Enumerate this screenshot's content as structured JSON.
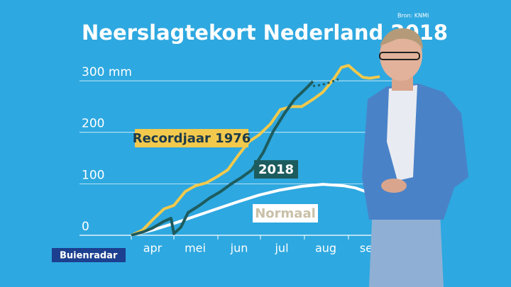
{
  "source": "Bron: KNMI",
  "brand": "Buienradar",
  "chart_data": {
    "type": "line",
    "title": "Neerslagtekort Nederland 2018",
    "xlim": [
      0,
      185
    ],
    "ylim": [
      0,
      340
    ],
    "xticks": [
      {
        "value": 15,
        "label": "apr"
      },
      {
        "value": 45,
        "label": "mei"
      },
      {
        "value": 76,
        "label": "jun"
      },
      {
        "value": 106,
        "label": "jul"
      },
      {
        "value": 137,
        "label": "aug"
      },
      {
        "value": 168,
        "label": "sep"
      }
    ],
    "yticks": [
      0,
      100,
      200,
      {
        "value": 300,
        "label": "300 mm"
      }
    ],
    "grid": true,
    "series": [
      {
        "name": "Recordjaar 1976",
        "color": "#f2c94c",
        "x": [
          0,
          8,
          15,
          23,
          30,
          38,
          45,
          53,
          60,
          68,
          75,
          83,
          90,
          98,
          105,
          113,
          120,
          128,
          135,
          143,
          148,
          153,
          158,
          163,
          168,
          175
        ],
        "values": [
          0,
          10,
          30,
          51,
          58,
          85,
          96,
          102,
          113,
          127,
          154,
          182,
          195,
          216,
          244,
          250,
          250,
          264,
          278,
          305,
          326,
          330,
          318,
          307,
          305,
          308
        ]
      },
      {
        "name": "2018",
        "color": "#1d5c5e",
        "x": [
          0,
          8,
          15,
          23,
          28,
          30,
          35,
          40,
          48,
          55,
          63,
          70,
          78,
          85,
          93,
          100,
          108,
          115,
          123,
          128
        ],
        "values": [
          0,
          6,
          14,
          27,
          33,
          3,
          16,
          44,
          58,
          72,
          85,
          99,
          113,
          127,
          161,
          202,
          237,
          264,
          285,
          299
        ]
      },
      {
        "color": "#1d5c5e",
        "dash": true,
        "x": [
          128,
          134,
          140,
          146
        ],
        "values": [
          290,
          292,
          297,
          303
        ]
      },
      {
        "name": "Normaal",
        "color": "#ffffff",
        "x": [
          0,
          15,
          30,
          45,
          60,
          75,
          90,
          105,
          120,
          135,
          150,
          158,
          165
        ],
        "values": [
          0,
          10,
          23,
          37,
          51,
          65,
          78,
          88,
          95,
          99,
          96,
          92,
          85
        ]
      }
    ]
  }
}
